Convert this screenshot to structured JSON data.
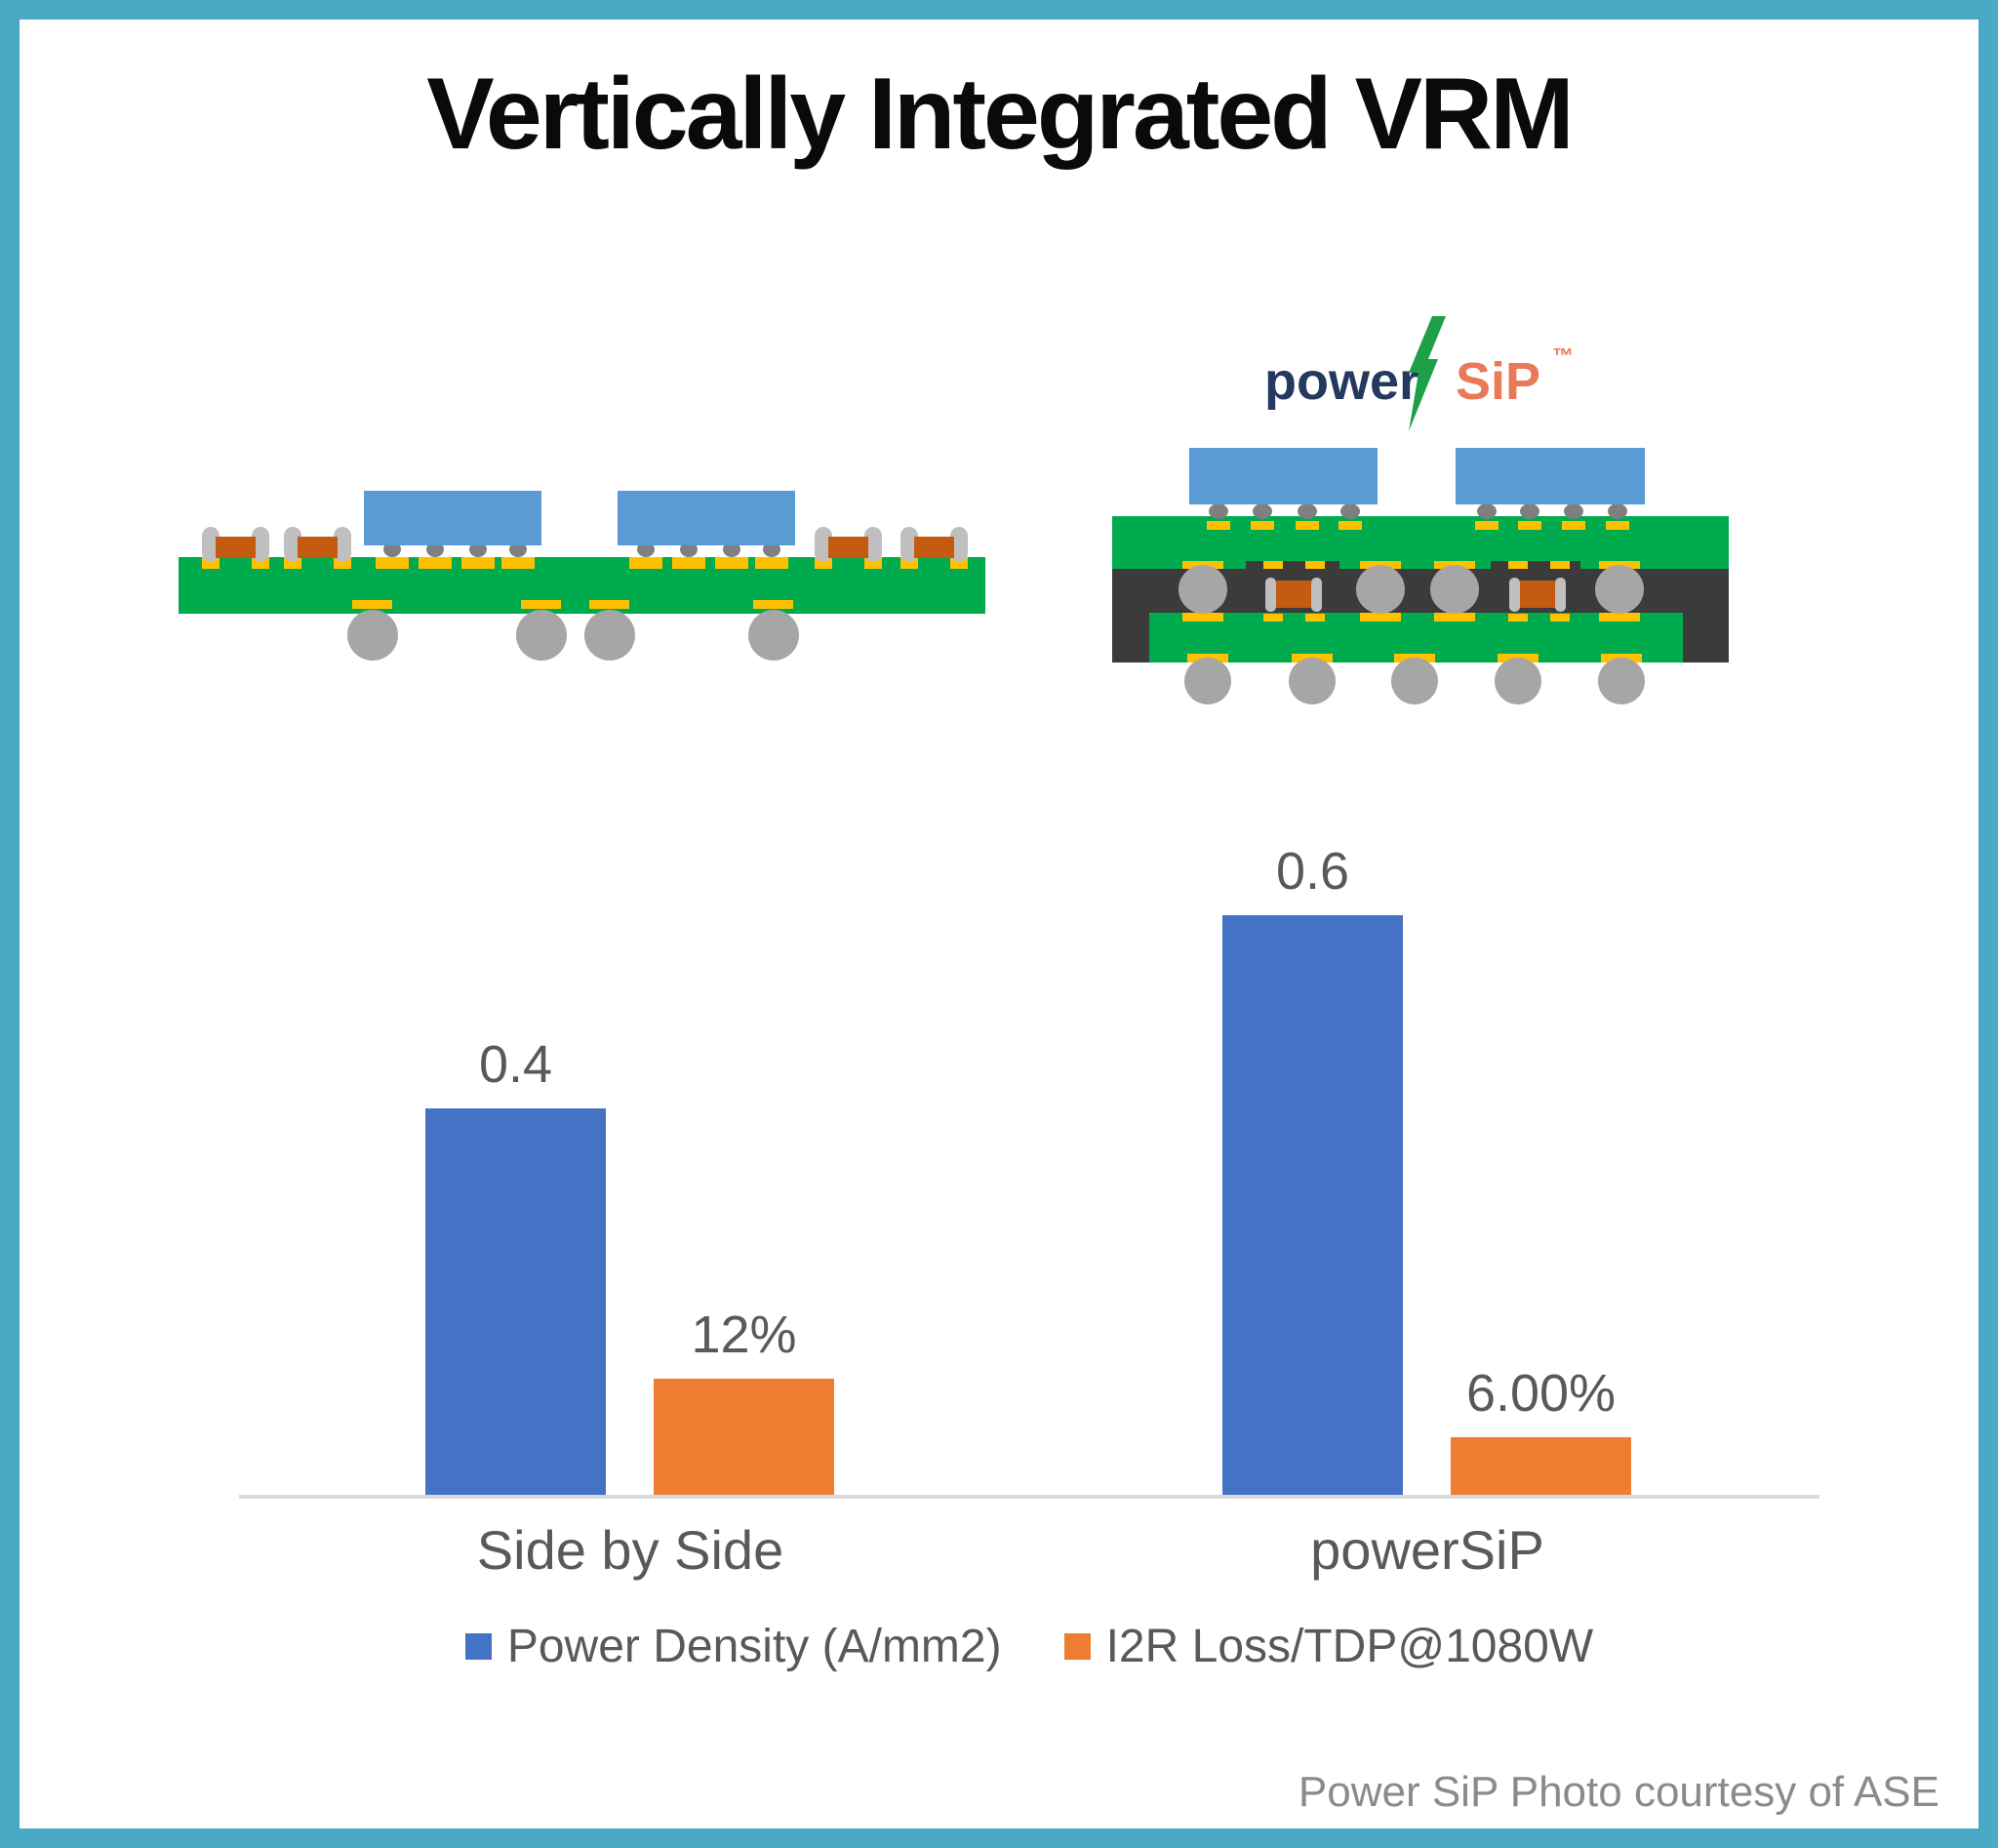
{
  "slide": {
    "title": "Vertically Integrated VRM",
    "footer_credit": "Power SiP Photo courtesy of ASE"
  },
  "logo": {
    "part1": "power",
    "part2": "SiP",
    "trademark": "™",
    "bolt_icon": "lightning-bolt"
  },
  "colors": {
    "frame_teal": "#4AA9C5",
    "title_black": "#0A0A0A",
    "bar_blue": "#4472C4",
    "bar_orange": "#ED7D31",
    "label_gray": "#595959",
    "axis_gray": "#D9D9D9",
    "footer_gray": "#8A8A8A",
    "pcb_green": "#00AB4E",
    "chip_blue": "#5B9BD5",
    "pad_gold": "#FFC000",
    "ball_gray": "#A6A6A6",
    "bump_gray": "#7F7F7F",
    "molding_dark": "#3B3B3B",
    "inductor_brown": "#C55A11",
    "inductor_cap_gray": "#BFBFBF",
    "logo_navy": "#25395E",
    "logo_coral": "#E87A58",
    "logo_green": "#1EA048"
  },
  "chart_data": {
    "type": "bar",
    "categories": [
      "Side by Side",
      "powerSiP"
    ],
    "series": [
      {
        "name": "Power Density (A/mm2)",
        "color": "#4472C4",
        "values": [
          0.4,
          0.6
        ],
        "data_labels": [
          "0.4",
          "0.6"
        ]
      },
      {
        "name": "I2R Loss/TDP@1080W",
        "color": "#ED7D31",
        "values": [
          0.12,
          0.06
        ],
        "data_labels": [
          "12%",
          "6.00%"
        ]
      }
    ],
    "ylim": [
      0,
      0.65
    ],
    "y_axis_visible": false,
    "grid": false,
    "data_labels_visible": true,
    "legend_position": "bottom"
  }
}
